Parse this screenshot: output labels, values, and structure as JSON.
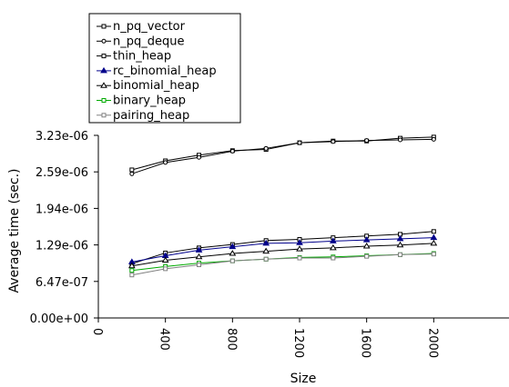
{
  "chart_data": {
    "type": "line",
    "xlabel": "Size",
    "ylabel": "Average time (sec.)",
    "xlim": [
      0,
      2400
    ],
    "ylim": [
      0,
      3.23e-06
    ],
    "x_ticks": [
      "0",
      "400",
      "800",
      "1200",
      "1600",
      "2000"
    ],
    "y_ticks": [
      "0.00e+00",
      "6.47e-07",
      "1.29e-06",
      "1.94e-06",
      "2.59e-06",
      "3.23e-06"
    ],
    "legend_position": "top-left (above plot)",
    "x": [
      200,
      400,
      600,
      800,
      1000,
      1200,
      1400,
      1600,
      1800,
      2000
    ],
    "series": [
      {
        "name": "n_pq_vector",
        "marker": "square",
        "color": "#000000",
        "values": [
          2.62e-06,
          2.78e-06,
          2.88e-06,
          2.96e-06,
          2.98e-06,
          3.1e-06,
          3.13e-06,
          3.13e-06,
          3.18e-06,
          3.2e-06
        ]
      },
      {
        "name": "n_pq_deque",
        "marker": "circle",
        "color": "#000000",
        "values": [
          2.55e-06,
          2.75e-06,
          2.84e-06,
          2.95e-06,
          3e-06,
          3.1e-06,
          3.12e-06,
          3.14e-06,
          3.15e-06,
          3.16e-06
        ]
      },
      {
        "name": "thin_heap",
        "marker": "square",
        "color": "#000000",
        "values": [
          9.6e-07,
          1.15e-06,
          1.24e-06,
          1.3e-06,
          1.37e-06,
          1.39e-06,
          1.42e-06,
          1.45e-06,
          1.48e-06,
          1.53e-06
        ]
      },
      {
        "name": "rc_binomial_heap",
        "marker": "triangle-filled",
        "color": "#00008b",
        "values": [
          9.9e-07,
          1.1e-06,
          1.2e-06,
          1.26e-06,
          1.32e-06,
          1.33e-06,
          1.36e-06,
          1.38e-06,
          1.4e-06,
          1.42e-06
        ]
      },
      {
        "name": "binomial_heap",
        "marker": "triangle",
        "color": "#000000",
        "values": [
          9.2e-07,
          1.02e-06,
          1.08e-06,
          1.14e-06,
          1.18e-06,
          1.22e-06,
          1.24e-06,
          1.27e-06,
          1.29e-06,
          1.32e-06
        ]
      },
      {
        "name": "binary_heap",
        "marker": "square",
        "color": "#00aa00",
        "values": [
          8.4e-07,
          9.1e-07,
          9.7e-07,
          1.01e-06,
          1.04e-06,
          1.07e-06,
          1.08e-06,
          1.1e-06,
          1.12e-06,
          1.14e-06
        ]
      },
      {
        "name": "pairing_heap",
        "marker": "square",
        "color": "#808080",
        "values": [
          7.6e-07,
          8.7e-07,
          9.4e-07,
          1.01e-06,
          1.04e-06,
          1.06e-06,
          1.06e-06,
          1.09e-06,
          1.12e-06,
          1.13e-06
        ]
      }
    ]
  }
}
